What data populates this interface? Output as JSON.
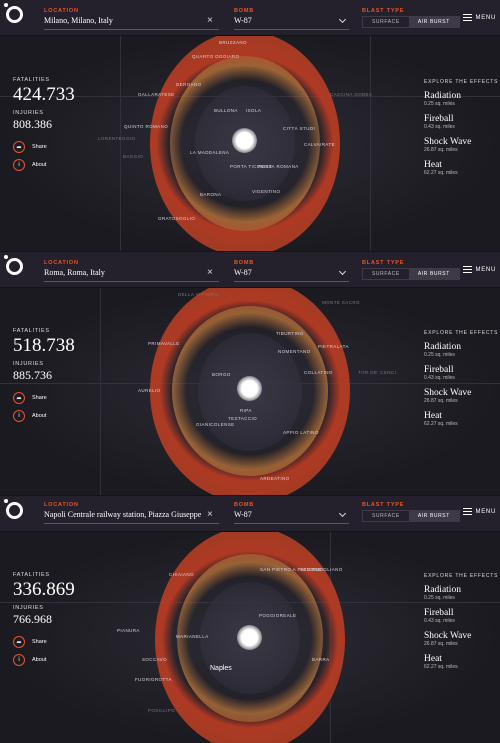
{
  "labels": {
    "location": "LOCATION",
    "bomb": "BOMB",
    "blast_type": "BLAST TYPE",
    "surface": "SURFACE",
    "air_burst": "AIR BURST",
    "menu": "MENU",
    "fatalities": "FATALITIES",
    "injuries": "INJURIES",
    "share": "Share",
    "about": "About",
    "explore": "EXPLORE THE EFFECTS"
  },
  "effects": [
    {
      "name": "Radiation",
      "value": "0.25 sq. miles"
    },
    {
      "name": "Fireball",
      "value": "0.43 sq. miles"
    },
    {
      "name": "Shock Wave",
      "value": "26.87 sq. miles"
    },
    {
      "name": "Heat",
      "value": "62.27 sq. miles"
    }
  ],
  "panels": [
    {
      "location": "Milano, Milano, Italy",
      "bomb": "W-87",
      "fatalities": "424.733",
      "injuries": "808.386",
      "places": [
        "BRUZZANO",
        "QUARTO OGGIARO",
        "GALLARATESE",
        "DERGANO",
        "BULLONA",
        "ISOLA",
        "CITTÀ STUDI",
        "PORTA TICINESE",
        "PORTA ROMANA",
        "BAGGIO",
        "LA MADDALENA",
        "QUINTO ROMANO",
        "VIGENTINO",
        "BARONA",
        "GRATOSOGLIO",
        "LORENTEGGIO",
        "CASCINA GOBBA",
        "CALVAIRATE"
      ]
    },
    {
      "location": "Roma, Roma, Italy",
      "bomb": "W-87",
      "fatalities": "518.738",
      "injuries": "885.736",
      "places": [
        "DELLA VITTORIA",
        "PRIMAVALLE",
        "AURELIO",
        "BORGO",
        "RIPA",
        "TESTACCIO",
        "GIANICOLENSE",
        "APPIO LATINO",
        "COLLATINO",
        "NOMENTANO",
        "PIETRALATA",
        "TIBURTINO",
        "MONTE SACRO",
        "TOR DE' CENCI",
        "ARDEATINO"
      ]
    },
    {
      "location": "Napoli Centrale railway station, Piazza Giuseppe G",
      "bomb": "W-87",
      "fatalities": "336.869",
      "injuries": "766.968",
      "places": [
        "CHIAIANO",
        "SAN PIETRO A PATIERNO",
        "POGGIOREALE",
        "SOCCAVO",
        "FUORIGROTTA",
        "PIANURA",
        "MARIANELLA",
        "SECONDIGLIANO",
        "BARRA",
        "POSILLIPO"
      ],
      "city_label": "Naples"
    }
  ]
}
